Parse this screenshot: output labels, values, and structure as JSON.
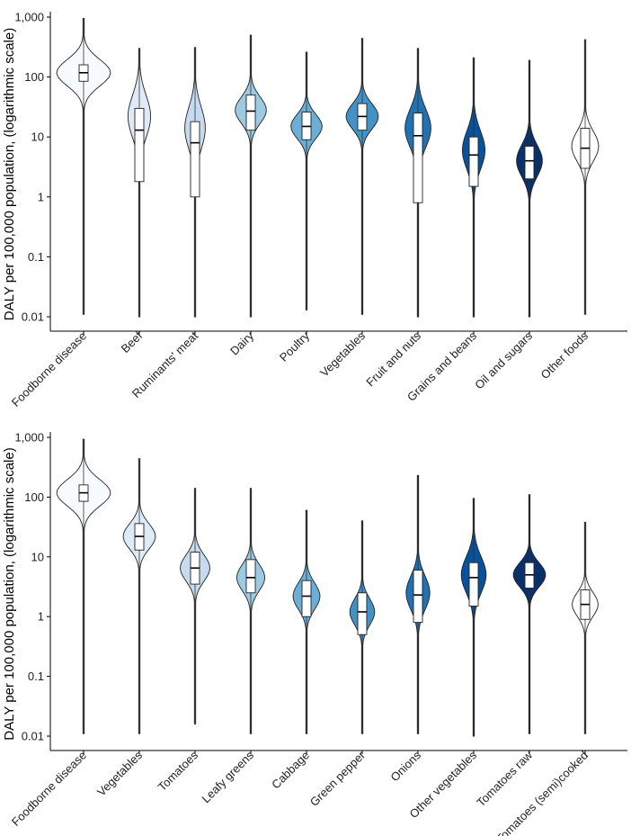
{
  "chart_data": [
    {
      "type": "violin",
      "panel": "top",
      "ylabel": "DALY per 100,000 population, (logarithmic scale)",
      "yscale": "log",
      "ylim": [
        0.01,
        1000
      ],
      "yticks": [
        0.01,
        0.1,
        1,
        10,
        100,
        1000
      ],
      "ytick_labels": [
        "0.01",
        "0.1",
        "1",
        "10",
        "100",
        "1,000"
      ],
      "categories": [
        "Foodborne disease",
        "Beef",
        "Ruminants' meat",
        "Dairy",
        "Poultry",
        "Vegetables",
        "Fruit and nuts",
        "Grains and beans",
        "Oil and sugars",
        "Other foods"
      ],
      "colors": [
        "#f7fbff",
        "#deebf7",
        "#c6dbef",
        "#9ecae1",
        "#6baed6",
        "#4292c6",
        "#2171b5",
        "#08519c",
        "#08306b",
        "#ffffff"
      ],
      "series": [
        {
          "name": "Foodborne disease",
          "min": 0.011,
          "max": 950,
          "q1": 85,
          "median": 118,
          "q3": 160,
          "mode": 118,
          "width": 1.0,
          "spread": 0.22
        },
        {
          "name": "Beef",
          "min": 0.01,
          "max": 300,
          "q1": 1.8,
          "median": 13,
          "q3": 30,
          "mode": 22,
          "width": 0.42,
          "spread": 0.35
        },
        {
          "name": "Ruminants' meat",
          "min": 0.01,
          "max": 310,
          "q1": 1.0,
          "median": 8,
          "q3": 18,
          "mode": 14,
          "width": 0.38,
          "spread": 0.35
        },
        {
          "name": "Dairy",
          "min": 0.01,
          "max": 500,
          "q1": 13,
          "median": 27,
          "q3": 50,
          "mode": 28,
          "width": 0.58,
          "spread": 0.22
        },
        {
          "name": "Poultry",
          "min": 0.013,
          "max": 260,
          "q1": 9,
          "median": 15,
          "q3": 26,
          "mode": 15,
          "width": 0.58,
          "spread": 0.2
        },
        {
          "name": "Vegetables",
          "min": 0.011,
          "max": 440,
          "q1": 13,
          "median": 22,
          "q3": 36,
          "mode": 22,
          "width": 0.6,
          "spread": 0.21
        },
        {
          "name": "Fruit and nuts",
          "min": 0.01,
          "max": 300,
          "q1": 0.8,
          "median": 10.5,
          "q3": 25,
          "mode": 14,
          "width": 0.48,
          "spread": 0.32
        },
        {
          "name": "Grains and beans",
          "min": 0.01,
          "max": 210,
          "q1": 1.5,
          "median": 5.0,
          "q3": 10,
          "mode": 6,
          "width": 0.42,
          "spread": 0.32
        },
        {
          "name": "Oil and sugars",
          "min": 0.01,
          "max": 190,
          "q1": 2.0,
          "median": 4.0,
          "q3": 7.0,
          "mode": 4,
          "width": 0.48,
          "spread": 0.26
        },
        {
          "name": "Other foods",
          "min": 0.011,
          "max": 420,
          "q1": 3.0,
          "median": 6.5,
          "q3": 14,
          "mode": 7,
          "width": 0.5,
          "spread": 0.25
        }
      ]
    },
    {
      "type": "violin",
      "panel": "bottom",
      "ylabel": "DALY per 100,000 population, (logarithmic scale)",
      "yscale": "log",
      "ylim": [
        0.01,
        1000
      ],
      "yticks": [
        0.01,
        0.1,
        1,
        10,
        100,
        1000
      ],
      "ytick_labels": [
        "0.01",
        "0.1",
        "1",
        "10",
        "100",
        "1,000"
      ],
      "categories": [
        "Foodborne disease",
        "Vegetables",
        "Tomatoes",
        "Leafy greens",
        "Cabbage",
        "Green pepper",
        "Onions",
        "Other vegetables",
        "Tomatoes raw",
        "Tomatoes (semi)cooked"
      ],
      "colors": [
        "#f7fbff",
        "#deebf7",
        "#c6dbef",
        "#9ecae1",
        "#6baed6",
        "#4292c6",
        "#2171b5",
        "#08519c",
        "#08306b",
        "#ffffff"
      ],
      "series": [
        {
          "name": "Foodborne disease",
          "min": 0.011,
          "max": 930,
          "q1": 85,
          "median": 118,
          "q3": 160,
          "mode": 118,
          "width": 1.0,
          "spread": 0.22
        },
        {
          "name": "Vegetables",
          "min": 0.011,
          "max": 440,
          "q1": 13,
          "median": 22,
          "q3": 36,
          "mode": 22,
          "width": 0.6,
          "spread": 0.21
        },
        {
          "name": "Tomatoes",
          "min": 0.016,
          "max": 140,
          "q1": 3.5,
          "median": 6.5,
          "q3": 12,
          "mode": 6.5,
          "width": 0.55,
          "spread": 0.22
        },
        {
          "name": "Leafy greens",
          "min": 0.011,
          "max": 140,
          "q1": 2.5,
          "median": 4.5,
          "q3": 9,
          "mode": 4.5,
          "width": 0.52,
          "spread": 0.22
        },
        {
          "name": "Cabbage",
          "min": 0.011,
          "max": 60,
          "q1": 1.0,
          "median": 2.2,
          "q3": 4.0,
          "mode": 2.2,
          "width": 0.5,
          "spread": 0.22
        },
        {
          "name": "Green pepper",
          "min": 0.011,
          "max": 40,
          "q1": 0.5,
          "median": 1.2,
          "q3": 2.5,
          "mode": 1.2,
          "width": 0.46,
          "spread": 0.22
        },
        {
          "name": "Onions",
          "min": 0.011,
          "max": 230,
          "q1": 0.8,
          "median": 2.3,
          "q3": 6,
          "mode": 2.5,
          "width": 0.44,
          "spread": 0.28
        },
        {
          "name": "Other vegetables",
          "min": 0.01,
          "max": 95,
          "q1": 1.5,
          "median": 4.5,
          "q3": 8,
          "mode": 5,
          "width": 0.46,
          "spread": 0.3
        },
        {
          "name": "Tomatoes raw",
          "min": 0.011,
          "max": 110,
          "q1": 3.0,
          "median": 5.0,
          "q3": 8.0,
          "mode": 5,
          "width": 0.6,
          "spread": 0.2
        },
        {
          "name": "Tomatoes (semi)cooked",
          "min": 0.011,
          "max": 38,
          "q1": 0.9,
          "median": 1.6,
          "q3": 2.8,
          "mode": 1.6,
          "width": 0.48,
          "spread": 0.2
        }
      ]
    }
  ]
}
